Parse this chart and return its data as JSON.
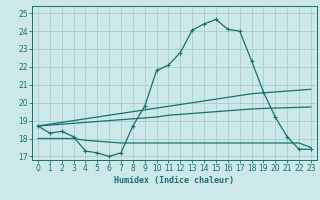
{
  "xlabel": "Humidex (Indice chaleur)",
  "background_color": "#cce8e8",
  "grid_color": "#aacccc",
  "line_color": "#1a7070",
  "xlim": [
    -0.5,
    23.5
  ],
  "ylim": [
    16.8,
    25.4
  ],
  "xticks": [
    0,
    1,
    2,
    3,
    4,
    5,
    6,
    7,
    8,
    9,
    10,
    11,
    12,
    13,
    14,
    15,
    16,
    17,
    18,
    19,
    20,
    21,
    22,
    23
  ],
  "yticks": [
    17,
    18,
    19,
    20,
    21,
    22,
    23,
    24,
    25
  ],
  "line1_x": [
    0,
    1,
    2,
    3,
    4,
    5,
    6,
    7,
    8,
    9,
    10,
    11,
    12,
    13,
    14,
    15,
    16,
    17,
    18,
    19,
    20,
    21,
    22,
    23
  ],
  "line1_y": [
    18.7,
    18.3,
    18.4,
    18.1,
    17.3,
    17.2,
    17.0,
    17.2,
    18.7,
    19.8,
    21.8,
    22.1,
    22.8,
    24.05,
    24.4,
    24.65,
    24.1,
    24.0,
    22.35,
    20.6,
    19.2,
    18.1,
    17.4,
    17.4
  ],
  "line2_x": [
    0,
    1,
    2,
    3,
    4,
    5,
    6,
    7,
    8,
    9,
    10,
    11,
    12,
    13,
    14,
    15,
    16,
    17,
    18,
    19,
    20,
    21,
    22,
    23
  ],
  "line2_y": [
    18.7,
    18.8,
    18.9,
    19.0,
    19.1,
    19.2,
    19.3,
    19.4,
    19.5,
    19.6,
    19.7,
    19.8,
    19.9,
    20.0,
    20.1,
    20.2,
    20.3,
    20.4,
    20.5,
    20.55,
    20.6,
    20.65,
    20.7,
    20.75
  ],
  "line3_x": [
    0,
    1,
    2,
    3,
    4,
    5,
    6,
    7,
    8,
    9,
    10,
    11,
    12,
    13,
    14,
    15,
    16,
    17,
    18,
    19,
    20,
    21,
    22,
    23
  ],
  "line3_y": [
    18.7,
    18.75,
    18.8,
    18.85,
    18.9,
    18.95,
    19.0,
    19.05,
    19.1,
    19.15,
    19.2,
    19.3,
    19.35,
    19.4,
    19.45,
    19.5,
    19.55,
    19.6,
    19.65,
    19.68,
    19.7,
    19.72,
    19.74,
    19.76
  ],
  "line4_x": [
    0,
    1,
    2,
    3,
    4,
    5,
    6,
    7,
    8,
    9,
    10,
    11,
    12,
    13,
    14,
    15,
    16,
    17,
    18,
    19,
    20,
    21,
    22,
    23
  ],
  "line4_y": [
    18.0,
    18.0,
    18.0,
    18.0,
    17.9,
    17.85,
    17.8,
    17.75,
    17.75,
    17.75,
    17.75,
    17.75,
    17.75,
    17.75,
    17.75,
    17.75,
    17.75,
    17.75,
    17.75,
    17.75,
    17.75,
    17.75,
    17.75,
    17.5
  ]
}
